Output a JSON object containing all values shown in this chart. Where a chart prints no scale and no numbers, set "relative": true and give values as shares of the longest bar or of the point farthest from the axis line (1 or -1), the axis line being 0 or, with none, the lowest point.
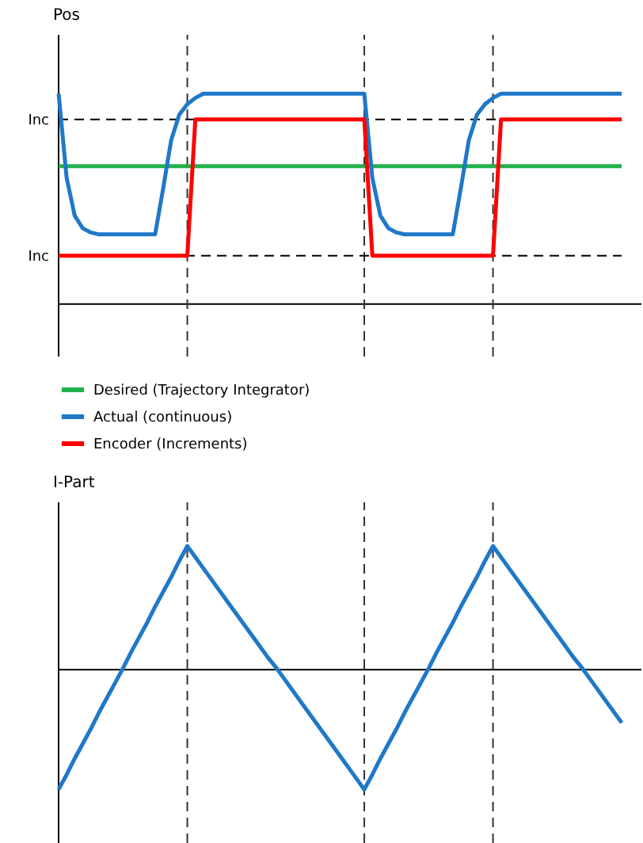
{
  "chart_data": [
    {
      "type": "line",
      "relative": true,
      "ylabel": "Pos",
      "legend": "bottom",
      "line_style": "solid",
      "grid": "x",
      "categories": [
        null,
        null,
        null,
        null,
        null,
        null,
        null,
        null,
        null,
        null,
        null,
        null,
        null,
        null,
        null,
        null,
        null,
        null,
        null,
        null,
        null,
        null,
        null,
        null,
        null,
        null,
        null,
        null,
        null,
        null,
        null,
        null,
        null,
        null,
        null,
        null,
        null,
        null,
        null,
        null,
        null,
        null,
        null,
        null,
        null,
        null,
        null,
        null,
        null,
        null,
        null,
        null,
        null,
        null,
        null,
        null,
        null,
        null,
        null,
        null,
        null,
        null,
        null,
        null,
        null,
        null,
        null,
        null,
        null,
        null,
        null
      ],
      "series": [
        {
          "name": "Desired (Trajectory Integrator)",
          "color": "#22b14c",
          "values": [
            0.655,
            0.655,
            0.655,
            0.655,
            0.655,
            0.655,
            0.655,
            0.655,
            0.655,
            0.655,
            0.655,
            0.655,
            0.655,
            0.655,
            0.655,
            0.655,
            0.655,
            0.655,
            0.655,
            0.655,
            0.655,
            0.655,
            0.655,
            0.655,
            0.655,
            0.655,
            0.655,
            0.655,
            0.655,
            0.655,
            0.655,
            0.655,
            0.655,
            0.655,
            0.655,
            0.655,
            0.655,
            0.655,
            0.655,
            0.655,
            0.655,
            0.655,
            0.655,
            0.655,
            0.655,
            0.655,
            0.655,
            0.655,
            0.655,
            0.655,
            0.655,
            0.655,
            0.655,
            0.655,
            0.655,
            0.655,
            0.655,
            0.655,
            0.655,
            0.655,
            0.655,
            0.655,
            0.655,
            0.655,
            0.655,
            0.655,
            0.655,
            0.655,
            0.655,
            0.655,
            0.655
          ]
        },
        {
          "name": "Actual (continuous)",
          "color": "#1f78c8",
          "values": [
            1,
            0.6,
            0.42,
            0.36,
            0.34,
            0.331,
            0.331,
            0.331,
            0.331,
            0.331,
            0.331,
            0.331,
            0.331,
            0.55,
            0.78,
            0.9,
            0.95,
            0.98,
            1,
            1,
            1,
            1,
            1,
            1,
            1,
            1,
            1,
            1,
            1,
            1,
            1,
            1,
            1,
            1,
            1,
            1,
            1,
            1,
            1,
            0.6,
            0.42,
            0.36,
            0.34,
            0.331,
            0.331,
            0.331,
            0.331,
            0.331,
            0.331,
            0.331,
            0.55,
            0.78,
            0.9,
            0.95,
            0.98,
            1,
            1,
            1,
            1,
            1,
            1,
            1,
            1,
            1,
            1,
            1,
            1,
            1,
            1,
            1,
            1
          ]
        },
        {
          "name": "Encoder (Increments)",
          "color": "#ff0000",
          "values": [
            0.23,
            0.23,
            0.23,
            0.23,
            0.23,
            0.23,
            0.23,
            0.23,
            0.23,
            0.23,
            0.23,
            0.23,
            0.23,
            0.23,
            0.23,
            0.23,
            0.23,
            0.878,
            0.878,
            0.878,
            0.878,
            0.878,
            0.878,
            0.878,
            0.878,
            0.878,
            0.878,
            0.878,
            0.878,
            0.878,
            0.878,
            0.878,
            0.878,
            0.878,
            0.878,
            0.878,
            0.878,
            0.878,
            0.878,
            0.23,
            0.23,
            0.23,
            0.23,
            0.23,
            0.23,
            0.23,
            0.23,
            0.23,
            0.23,
            0.23,
            0.23,
            0.23,
            0.23,
            0.23,
            0.23,
            0.878,
            0.878,
            0.878,
            0.878,
            0.878,
            0.878,
            0.878,
            0.878,
            0.878,
            0.878,
            0.878,
            0.878,
            0.878,
            0.878,
            0.878,
            0.878
          ]
        }
      ],
      "ref_lines": [
        {
          "axis": "y",
          "value": 0.878,
          "label": "Inc",
          "line_style": "dashed"
        },
        {
          "axis": "y",
          "value": 0.23,
          "label": "Inc",
          "line_style": "dashed"
        }
      ]
    },
    {
      "type": "line",
      "relative": true,
      "ylabel": "I-Part",
      "line_style": "solid",
      "grid": "x",
      "categories": [
        null,
        null,
        null,
        null,
        null,
        null,
        null,
        null,
        null,
        null,
        null,
        null,
        null,
        null,
        null,
        null,
        null,
        null,
        null,
        null,
        null,
        null,
        null,
        null,
        null,
        null,
        null,
        null,
        null,
        null,
        null,
        null,
        null,
        null,
        null,
        null,
        null,
        null,
        null,
        null,
        null,
        null,
        null,
        null,
        null,
        null,
        null,
        null,
        null,
        null,
        null,
        null,
        null,
        null,
        null,
        null,
        null,
        null,
        null,
        null,
        null,
        null,
        null,
        null,
        null,
        null,
        null,
        null,
        null,
        null,
        null
      ],
      "series": [
        {
          "color": "#1f78c8",
          "values": [
            -0.97,
            -0.85,
            -0.72,
            -0.6,
            -0.48,
            -0.35,
            -0.23,
            -0.11,
            0.01,
            0.14,
            0.26,
            0.38,
            0.51,
            0.63,
            0.75,
            0.88,
            1,
            0.91,
            0.82,
            0.73,
            0.64,
            0.55,
            0.46,
            0.37,
            0.28,
            0.19,
            0.1,
            0.02,
            -0.07,
            -0.16,
            -0.25,
            -0.34,
            -0.43,
            -0.52,
            -0.61,
            -0.7,
            -0.79,
            -0.88,
            -0.97,
            -0.85,
            -0.72,
            -0.6,
            -0.48,
            -0.35,
            -0.23,
            -0.11,
            0.01,
            0.14,
            0.26,
            0.38,
            0.51,
            0.63,
            0.75,
            0.88,
            1,
            0.91,
            0.82,
            0.73,
            0.64,
            0.55,
            0.46,
            0.37,
            0.28,
            0.19,
            0.1,
            0.02,
            -0.07,
            -0.16,
            -0.25,
            -0.34,
            -0.43
          ]
        }
      ]
    }
  ]
}
